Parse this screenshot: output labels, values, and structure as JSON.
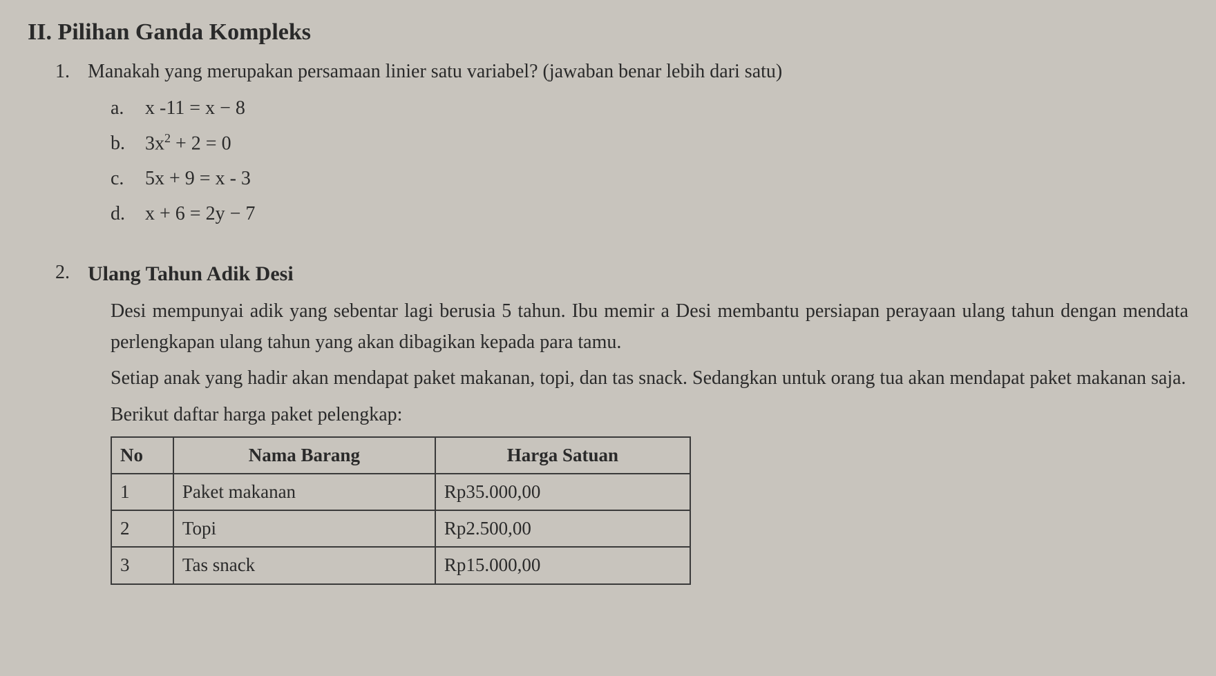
{
  "section": {
    "header": "II. Pilihan Ganda Kompleks"
  },
  "q1": {
    "number": "1.",
    "text": "Manakah yang merupakan persamaan linier satu variabel? (jawaban benar lebih dari satu)",
    "options": {
      "a": {
        "letter": "a.",
        "content": "x -11 = x − 8"
      },
      "b": {
        "letter": "b.",
        "content_prefix": "3x",
        "exponent": "2",
        "content_suffix": " + 2 = 0"
      },
      "c": {
        "letter": "c.",
        "content": "5x + 9 = x - 3"
      },
      "d": {
        "letter": "d.",
        "content": "x + 6 = 2y − 7"
      }
    }
  },
  "q2": {
    "number": "2.",
    "title": "Ulang Tahun Adik Desi",
    "para1": "Desi mempunyai adik yang sebentar lagi berusia 5 tahun. Ibu memir a Desi membantu persiapan perayaan ulang tahun dengan mendata perlengkapan ulang tahun yang akan dibagikan kepada para tamu.",
    "para2": "Setiap anak yang hadir akan mendapat paket makanan, topi, dan tas snack. Sedangkan untuk orang tua akan mendapat paket makanan saja.",
    "para3": "Berikut daftar harga paket pelengkap:",
    "table": {
      "headers": {
        "no": "No",
        "nama": "Nama Barang",
        "harga": "Harga Satuan"
      },
      "rows": [
        {
          "no": "1",
          "nama": "Paket makanan",
          "harga": "Rp35.000,00"
        },
        {
          "no": "2",
          "nama": "Topi",
          "harga": "Rp2.500,00"
        },
        {
          "no": "3",
          "nama": "Tas snack",
          "harga": "Rp15.000,00"
        }
      ]
    }
  }
}
